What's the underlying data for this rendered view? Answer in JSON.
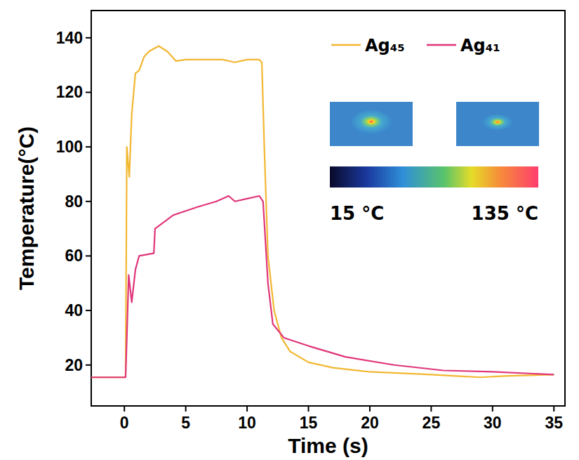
{
  "chart_data": {
    "type": "line",
    "x_label": "Time (s)",
    "y_label": "Temperature(°C)",
    "xlim": [
      -2.7,
      35.9
    ],
    "xticks": [
      0,
      5,
      10,
      15,
      20,
      25,
      30,
      35
    ],
    "ylim": [
      5,
      150
    ],
    "yticks": [
      20,
      40,
      60,
      80,
      100,
      120,
      140
    ],
    "grid": false,
    "legend": "upper right",
    "series": [
      {
        "name": "Ag₄₅",
        "color": "#f2b731",
        "x": [
          -2.7,
          0,
          0.1,
          0.2,
          0.4,
          0.6,
          0.9,
          1.2,
          1.6,
          2.0,
          2.8,
          3.5,
          4.2,
          5,
          6,
          7,
          8,
          9,
          10,
          11,
          11.2,
          11.4,
          11.7,
          12.2,
          12.8,
          13.5,
          15,
          17,
          20,
          25,
          27,
          29,
          31,
          35
        ],
        "values": [
          15.5,
          15.5,
          16,
          100,
          89,
          112,
          127,
          128,
          133,
          135,
          137,
          135,
          131.5,
          132,
          132,
          132,
          132,
          131,
          132,
          132,
          131,
          100,
          60,
          40,
          30,
          25,
          21,
          19,
          17.5,
          16.5,
          16,
          15.5,
          16,
          16.5
        ]
      },
      {
        "name": "Ag₄₁",
        "color": "#e0357a",
        "x": [
          -2.7,
          0.1,
          0.2,
          0.35,
          0.6,
          0.9,
          1.2,
          2.4,
          2.5,
          4,
          6,
          7.5,
          8.5,
          9,
          10,
          11,
          11.3,
          11.7,
          12.1,
          13,
          15,
          18,
          22,
          26,
          30,
          35
        ],
        "values": [
          15.5,
          15.5,
          30,
          53,
          43,
          55,
          60,
          61,
          70,
          75,
          78,
          80,
          82,
          80,
          81,
          82,
          80,
          50,
          35,
          30,
          27,
          23,
          20,
          18,
          17.5,
          16.5
        ]
      }
    ],
    "colorbar_range": [
      15,
      135
    ],
    "colorbar_ticks": [
      {
        "value": 15,
        "label": "15 °C"
      },
      {
        "value": 135,
        "label": "135 °C"
      }
    ]
  }
}
